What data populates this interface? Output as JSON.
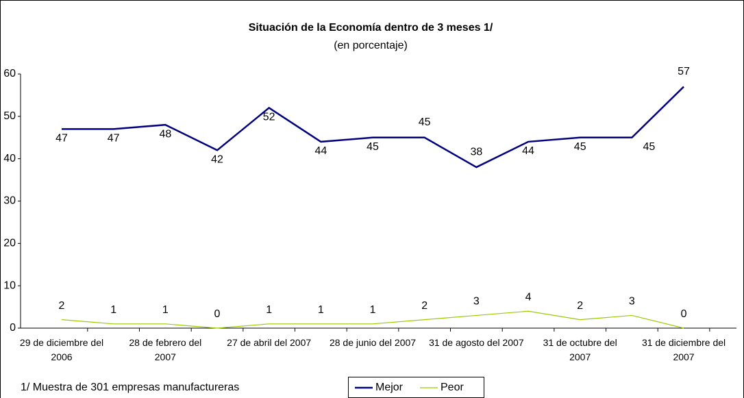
{
  "chart_data": {
    "type": "line",
    "title": "Situación de la Economía dentro de 3 meses 1/",
    "subtitle": "(en porcentaje)",
    "note": "1/ Muestra de 301 empresas manufactureras",
    "categories": [
      "29 de diciembre del 2006",
      null,
      "28 de febrero del 2007",
      null,
      "27 de abril del 2007",
      null,
      "28 de junio del 2007",
      null,
      "31 de agosto del 2007",
      null,
      "31 de octubre del 2007",
      null,
      "31 de diciembre del 2007"
    ],
    "series": [
      {
        "name": "Mejor",
        "color": "#000080",
        "values": [
          47,
          47,
          48,
          42,
          52,
          44,
          45,
          45,
          38,
          44,
          45,
          45,
          57
        ]
      },
      {
        "name": "Peor",
        "color": "#99cc00",
        "values": [
          2,
          1,
          1,
          0,
          1,
          1,
          1,
          2,
          3,
          4,
          2,
          3,
          0
        ]
      }
    ],
    "ylim": [
      0,
      60
    ],
    "yticks": [
      0,
      10,
      20,
      30,
      40,
      50,
      60
    ],
    "grid": false
  }
}
